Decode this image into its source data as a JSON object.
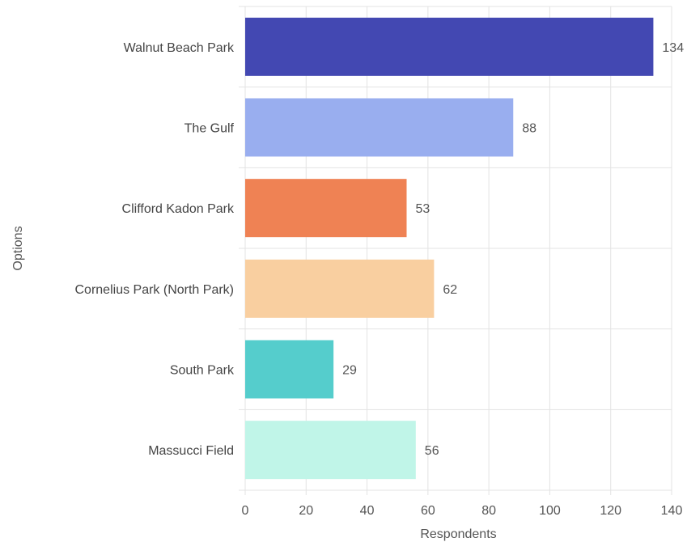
{
  "chart_data": {
    "type": "bar",
    "orientation": "horizontal",
    "categories": [
      "Walnut Beach Park",
      "The Gulf",
      "Clifford Kadon Park",
      "Cornelius Park (North Park)",
      "South Park",
      "Massucci Field"
    ],
    "values": [
      134,
      88,
      53,
      62,
      29,
      56
    ],
    "colors": [
      "#4348b2",
      "#99aeef",
      "#ef8254",
      "#f9cfa0",
      "#55cdcc",
      "#c0f5e8"
    ],
    "xlabel": "Respondents",
    "ylabel": "Options",
    "xlim": [
      0,
      140
    ],
    "xticks": [
      0,
      20,
      40,
      60,
      80,
      100,
      120,
      140
    ],
    "grid": true,
    "data_labels": true
  }
}
